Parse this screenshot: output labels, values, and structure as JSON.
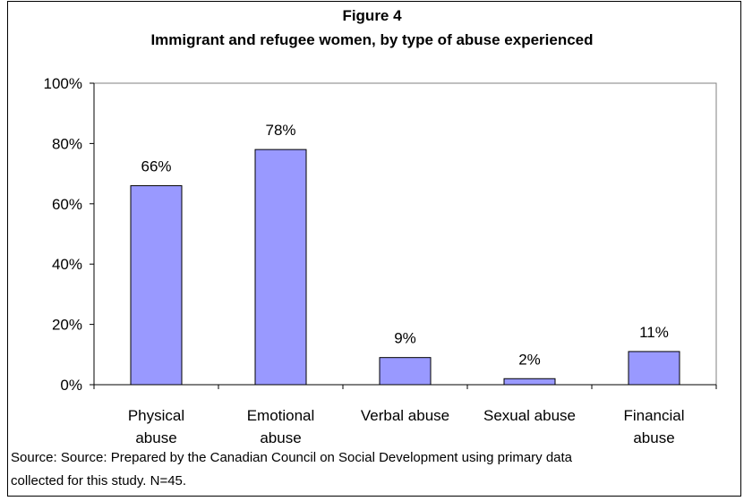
{
  "chart_data": {
    "type": "bar",
    "title": "Figure 4",
    "subtitle": "Immigrant and refugee women, by type of abuse experienced",
    "categories": [
      [
        "Physical",
        "abuse"
      ],
      [
        "Emotional",
        "abuse"
      ],
      [
        "Verbal abuse"
      ],
      [
        "Sexual abuse"
      ],
      [
        "Financial",
        "abuse"
      ]
    ],
    "values": [
      66,
      78,
      9,
      2,
      11
    ],
    "data_labels": [
      "66%",
      "78%",
      "9%",
      "2%",
      "11%"
    ],
    "ylim": [
      0,
      100
    ],
    "yticks": [
      0,
      20,
      40,
      60,
      80,
      100
    ],
    "ytick_labels": [
      "0%",
      "20%",
      "40%",
      "60%",
      "80%",
      "100%"
    ],
    "grid": false,
    "bar_color": "#9999ff",
    "bar_edge_color": "#000000"
  },
  "footer": {
    "line1": "Source: Source: Prepared by the Canadian Council on Social Development using primary data",
    "line2": "collected for this study. N=45."
  }
}
